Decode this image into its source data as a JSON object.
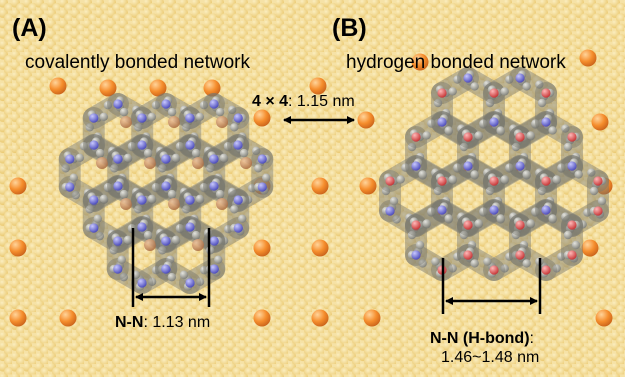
{
  "panels": [
    {
      "label": "(A)",
      "title": "covalently bonded network",
      "measurement": {
        "bold": "N-N",
        "rest": ": 1.13 nm"
      }
    },
    {
      "label": "(B)",
      "title": "hydrogen bonded network",
      "measurement": {
        "bold": "N-N (H-bond)",
        "rest": ":",
        "line2": "1.46~1.48 nm"
      }
    }
  ],
  "lattice_measurement": {
    "bold": "4 × 4",
    "rest": ": 1.15 nm"
  },
  "colors": {
    "substrate": "#f6e2a6",
    "substrate_atom": "#efcd73",
    "adatom": "#f28a2a",
    "carbon": "#9a9a90",
    "nitrogen": "#6a6ad6",
    "oxygen": "#e05050",
    "copper": "#c98a5a"
  }
}
